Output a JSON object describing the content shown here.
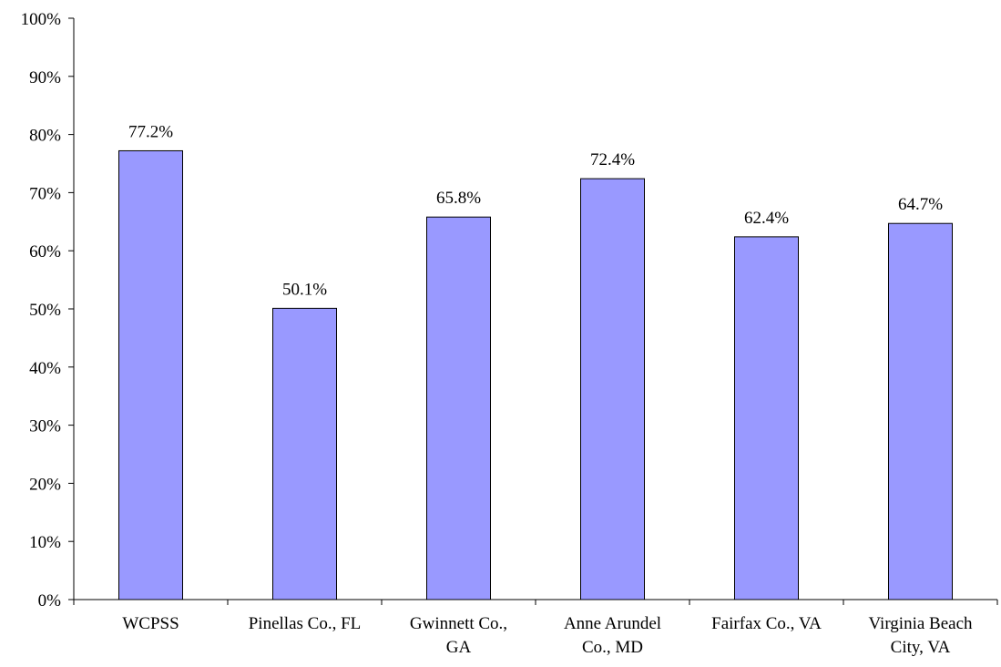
{
  "chart_data": {
    "type": "bar",
    "categories": [
      [
        "WCPSS"
      ],
      [
        "Pinellas Co., FL"
      ],
      [
        "Gwinnett Co.,",
        "GA"
      ],
      [
        "Anne Arundel",
        "Co., MD"
      ],
      [
        "Fairfax Co., VA"
      ],
      [
        "Virginia Beach",
        "City, VA"
      ]
    ],
    "values": [
      77.2,
      50.1,
      65.8,
      72.4,
      62.4,
      64.7
    ],
    "data_labels": [
      "77.2%",
      "50.1%",
      "65.8%",
      "72.4%",
      "62.4%",
      "64.7%"
    ],
    "ylim": [
      0,
      100
    ],
    "yticks": [
      0,
      10,
      20,
      30,
      40,
      50,
      60,
      70,
      80,
      90,
      100
    ],
    "ytick_labels": [
      "0%",
      "10%",
      "20%",
      "30%",
      "40%",
      "50%",
      "60%",
      "70%",
      "80%",
      "90%",
      "100%"
    ],
    "grid": false,
    "bar_color": "#9999ff",
    "bar_edge_color": "#000000"
  }
}
